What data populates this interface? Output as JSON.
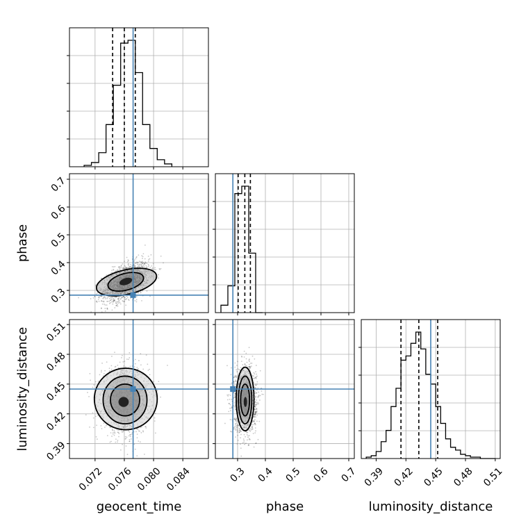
{
  "chart_data": {
    "type": "corner",
    "parameters": [
      "geocent_time",
      "phase",
      "luminosity_distance"
    ],
    "truths": [
      0.0772,
      0.283,
      0.445
    ],
    "truth_color": "#4682b4",
    "ranges": [
      [
        0.0685,
        0.0875
      ],
      [
        0.22,
        0.72
      ],
      [
        0.375,
        0.515
      ]
    ],
    "ticks": {
      "geocent_time": [
        "0.072",
        "0.076",
        "0.080",
        "0.084"
      ],
      "phase": [
        "0.3",
        "0.4",
        "0.5",
        "0.6",
        "0.7"
      ],
      "luminosity_distance": [
        "0.39",
        "0.42",
        "0.45",
        "0.48",
        "0.51"
      ]
    },
    "grid": true,
    "marginals": [
      {
        "parameter": "geocent_time",
        "bin_edges": [
          0.0705,
          0.0715,
          0.0725,
          0.0735,
          0.0745,
          0.0755,
          0.0765,
          0.0775,
          0.0785,
          0.0795,
          0.0805,
          0.0815,
          0.0825
        ],
        "counts": [
          0.01,
          0.03,
          0.1,
          0.3,
          0.58,
          0.88,
          0.9,
          0.67,
          0.3,
          0.13,
          0.05,
          0.02
        ],
        "quantiles": [
          0.0744,
          0.076,
          0.0775
        ]
      },
      {
        "parameter": "phase",
        "bin_edges": [
          0.24,
          0.265,
          0.29,
          0.315,
          0.34,
          0.365,
          0.39
        ],
        "counts": [
          0.05,
          0.18,
          0.8,
          0.85,
          0.4,
          0.0
        ],
        "quantiles": [
          0.302,
          0.326,
          0.346
        ]
      },
      {
        "parameter": "luminosity_distance",
        "bin_edges": [
          0.38,
          0.385,
          0.39,
          0.395,
          0.4,
          0.405,
          0.41,
          0.415,
          0.42,
          0.425,
          0.43,
          0.435,
          0.44,
          0.445,
          0.45,
          0.455,
          0.46,
          0.465,
          0.47,
          0.475,
          0.48,
          0.485,
          0.49,
          0.495,
          0.5,
          0.505,
          0.51
        ],
        "counts": [
          0.01,
          0.02,
          0.05,
          0.12,
          0.2,
          0.37,
          0.5,
          0.7,
          0.73,
          0.82,
          0.9,
          0.78,
          0.6,
          0.53,
          0.37,
          0.25,
          0.14,
          0.08,
          0.06,
          0.03,
          0.02,
          0.01,
          0.01,
          0.0,
          0.0,
          0.0
        ],
        "quantiles": [
          0.415,
          0.433,
          0.452
        ]
      }
    ],
    "joint": [
      {
        "x": "geocent_time",
        "y": "phase",
        "center": [
          0.0762,
          0.33
        ],
        "spread": [
          0.0016,
          0.035
        ],
        "correlation": 0.5,
        "contours": [
          {
            "center": [
              0.0762,
              0.332
            ],
            "radii": [
              0.0009,
              0.012
            ],
            "rotation_deg": -18
          },
          {
            "center": [
              0.0762,
              0.331
            ],
            "radii": [
              0.0025,
              0.03
            ],
            "rotation_deg": -15
          },
          {
            "center": [
              0.0763,
              0.33
            ],
            "radii": [
              0.0042,
              0.044
            ],
            "rotation_deg": -13
          }
        ]
      },
      {
        "x": "geocent_time",
        "y": "luminosity_distance",
        "center": [
          0.0761,
          0.434
        ],
        "spread": [
          0.0016,
          0.016
        ],
        "correlation": 0.0,
        "contours": [
          {
            "center": [
              0.0759,
              0.432
            ],
            "radii": [
              0.0007,
              0.005
            ],
            "rotation_deg": 0
          },
          {
            "center": [
              0.0761,
              0.434
            ],
            "radii": [
              0.002,
              0.016
            ],
            "rotation_deg": 0
          },
          {
            "center": [
              0.0761,
              0.434
            ],
            "radii": [
              0.003,
              0.024
            ],
            "rotation_deg": 0
          },
          {
            "center": [
              0.0762,
              0.435
            ],
            "radii": [
              0.0043,
              0.031
            ],
            "rotation_deg": 0
          }
        ]
      },
      {
        "x": "phase",
        "y": "luminosity_distance",
        "center": [
          0.327,
          0.434
        ],
        "spread": [
          0.02,
          0.016
        ],
        "correlation": 0.0,
        "contours": [
          {
            "center": [
              0.328,
              0.432
            ],
            "radii": [
              0.006,
              0.005
            ],
            "rotation_deg": 0
          },
          {
            "center": [
              0.327,
              0.434
            ],
            "radii": [
              0.016,
              0.016
            ],
            "rotation_deg": 0
          },
          {
            "center": [
              0.327,
              0.434
            ],
            "radii": [
              0.024,
              0.024
            ],
            "rotation_deg": 0
          },
          {
            "center": [
              0.327,
              0.435
            ],
            "radii": [
              0.032,
              0.032
            ],
            "rotation_deg": 0
          }
        ]
      }
    ]
  }
}
